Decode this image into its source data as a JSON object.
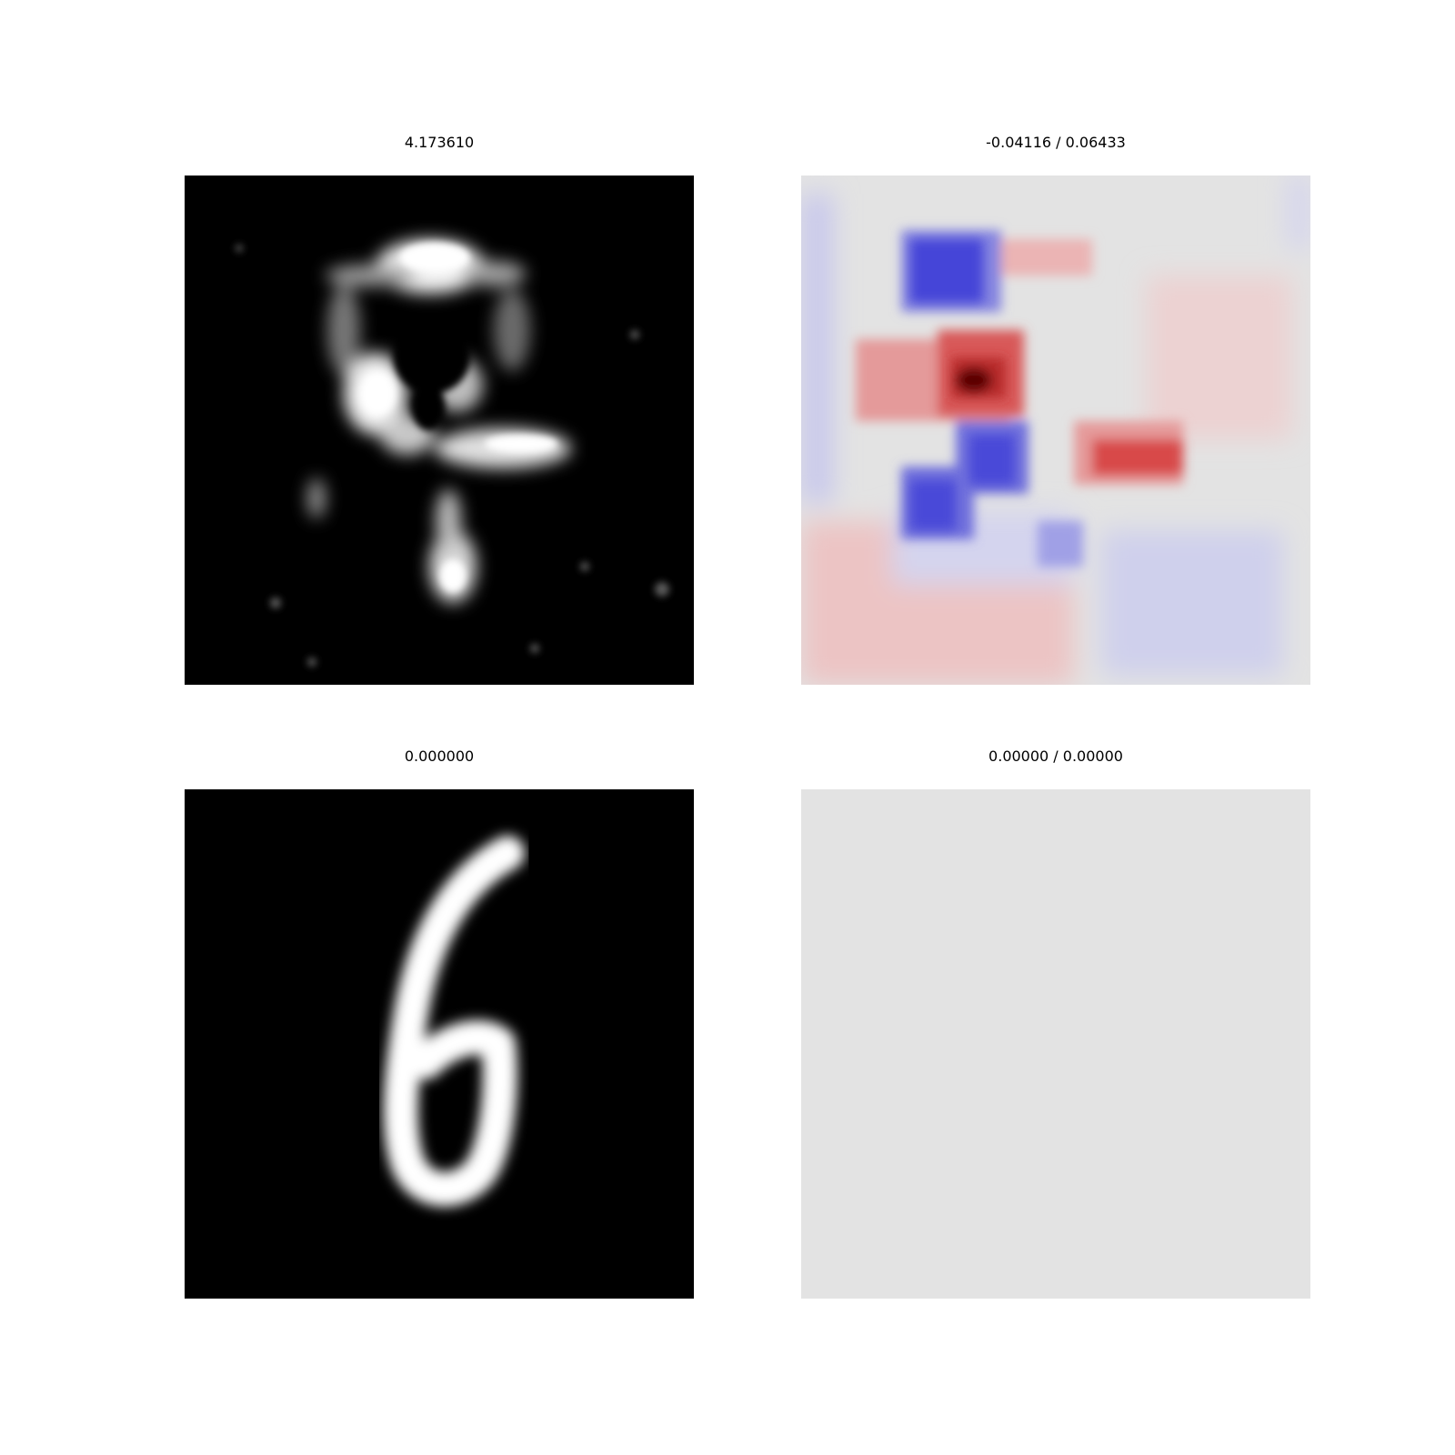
{
  "panels": [
    {
      "title": "4.173610",
      "kind": "generated-digit-grayscale"
    },
    {
      "title": "-0.04116 / 0.06433",
      "kind": "difference-map-diverging"
    },
    {
      "title": "0.000000",
      "kind": "handwritten-digit-six-grayscale"
    },
    {
      "title": "0.00000 / 0.00000",
      "kind": "empty-difference-map"
    }
  ],
  "colors": {
    "background": "#ffffff",
    "image_black": "#000000",
    "image_white": "#ffffff",
    "diverging_neutral": "#e3e3e3",
    "diverging_negative": "#2f2fd6",
    "diverging_positive": "#d93030",
    "diverging_peak": "#5a0000"
  }
}
